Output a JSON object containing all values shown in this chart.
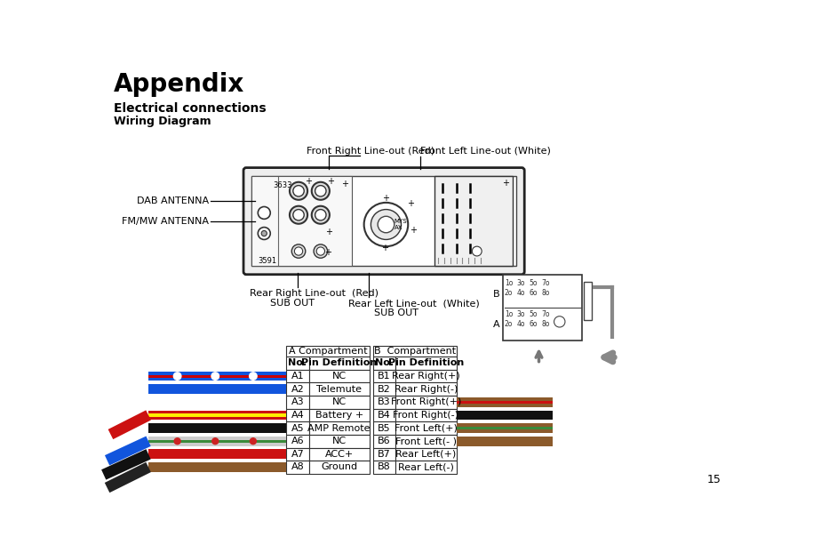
{
  "title": "Appendix",
  "subtitle": "Electrical connections",
  "subtitle2": "Wiring Diagram",
  "page_number": "15",
  "bg_color": "#ffffff",
  "table_a": {
    "header": "A Compartment",
    "rows": [
      [
        "No.",
        "Pin Definition"
      ],
      [
        "A1",
        "NC"
      ],
      [
        "A2",
        "Telemute"
      ],
      [
        "A3",
        "NC"
      ],
      [
        "A4",
        "Battery +"
      ],
      [
        "A5",
        "AMP Remote"
      ],
      [
        "A6",
        "NC"
      ],
      [
        "A7",
        "ACC+"
      ],
      [
        "A8",
        "Ground"
      ]
    ]
  },
  "table_b": {
    "header": "B  Compartment",
    "rows": [
      [
        "No.",
        "Pin Definition"
      ],
      [
        "B1",
        "Rear Right(+)"
      ],
      [
        "B2",
        "Rear Right(-)"
      ],
      [
        "B3",
        "Front Right(+)"
      ],
      [
        "B4",
        "Front Right(-)"
      ],
      [
        "B5",
        "Front Left(+)"
      ],
      [
        "B6",
        "Front Left(- )"
      ],
      [
        "B7",
        "Rear Left(+)"
      ],
      [
        "B8",
        "Rear Left(-)"
      ]
    ]
  }
}
